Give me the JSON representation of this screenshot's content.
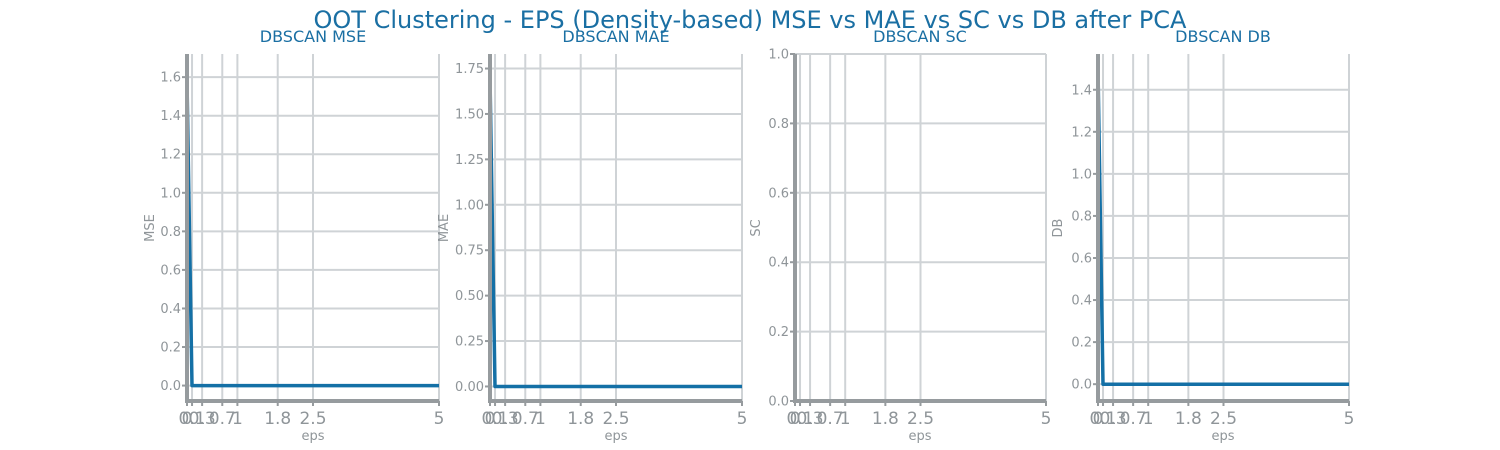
{
  "chart_data": {
    "suptitle": "OOT Clustering - EPS (Density-based) MSE vs MAE vs SC vs DB after PCA",
    "colors": {
      "line": "#1470a6",
      "title": "#1a6fa3",
      "axis": "#969b9e",
      "grid": "#cfd3d6",
      "text": "#8f9599"
    },
    "panels": [
      {
        "type": "line",
        "title": "DBSCAN MSE",
        "xlabel": "eps",
        "ylabel": "MSE",
        "x": [
          0,
          0.1,
          0.3,
          0.5,
          0.7,
          1,
          1.8,
          2.5,
          5
        ],
        "values": [
          1.58,
          0,
          0,
          0,
          0,
          0,
          0,
          0,
          0
        ],
        "xlim": [
          0,
          5
        ],
        "ylim": [
          -0.08,
          1.72
        ],
        "xticks": [
          0,
          0.1,
          0.3,
          0.7,
          1,
          1.8,
          2.5,
          5
        ],
        "xticklabels": [
          "0",
          "0.1",
          "0.3",
          "0.7",
          "1",
          "1.8",
          "2.5",
          "5"
        ],
        "yticks": [
          0,
          0.2,
          0.4,
          0.6,
          0.8,
          1.0,
          1.2,
          1.4,
          1.6
        ],
        "yticklabels": [
          "0.0",
          "0.2",
          "0.4",
          "0.6",
          "0.8",
          "1.0",
          "1.2",
          "1.4",
          "1.6"
        ]
      },
      {
        "type": "line",
        "title": "DBSCAN MAE",
        "xlabel": "eps",
        "ylabel": "MAE",
        "x": [
          0,
          0.1,
          0.3,
          0.5,
          0.7,
          1,
          1.8,
          2.5,
          5
        ],
        "values": [
          1.7,
          0,
          0,
          0,
          0,
          0,
          0,
          0,
          0
        ],
        "xlim": [
          0,
          5
        ],
        "ylim": [
          -0.08,
          1.83
        ],
        "xticks": [
          0,
          0.1,
          0.3,
          0.7,
          1,
          1.8,
          2.5,
          5
        ],
        "xticklabels": [
          "0",
          "0.1",
          "0.3",
          "0.7",
          "1",
          "1.8",
          "2.5",
          "5"
        ],
        "yticks": [
          0,
          0.25,
          0.5,
          0.75,
          1.0,
          1.25,
          1.5,
          1.75
        ],
        "yticklabels": [
          "0.00",
          "0.25",
          "0.50",
          "0.75",
          "1.00",
          "1.25",
          "1.50",
          "1.75"
        ]
      },
      {
        "type": "line",
        "title": "DBSCAN SC",
        "xlabel": "eps",
        "ylabel": "SC",
        "x": [
          0,
          0.1,
          0.3,
          0.5,
          0.7,
          1,
          1.8,
          2.5,
          5
        ],
        "values": [
          0,
          0,
          0,
          0,
          0,
          0,
          0,
          0,
          0
        ],
        "xlim": [
          0,
          5
        ],
        "ylim": [
          0,
          1.0
        ],
        "xticks": [
          0,
          0.1,
          0.3,
          0.7,
          1,
          1.8,
          2.5,
          5
        ],
        "xticklabels": [
          "0",
          "0.1",
          "0.3",
          "0.7",
          "1",
          "1.8",
          "2.5",
          "5"
        ],
        "yticks": [
          0,
          0.2,
          0.4,
          0.6,
          0.8,
          1.0
        ],
        "yticklabels": [
          "0.0",
          "0.2",
          "0.4",
          "0.6",
          "0.8",
          "1.0"
        ]
      },
      {
        "type": "line",
        "title": "DBSCAN DB",
        "xlabel": "eps",
        "ylabel": "DB",
        "x": [
          0,
          0.1,
          0.3,
          0.5,
          0.7,
          1,
          1.8,
          2.5,
          5
        ],
        "values": [
          1.5,
          0,
          0,
          0,
          0,
          0,
          0,
          0,
          0
        ],
        "xlim": [
          0,
          5
        ],
        "ylim": [
          -0.08,
          1.57
        ],
        "xticks": [
          0,
          0.1,
          0.3,
          0.7,
          1,
          1.8,
          2.5,
          5
        ],
        "xticklabels": [
          "0",
          "0.1",
          "0.3",
          "0.7",
          "1",
          "1.8",
          "2.5",
          "5"
        ],
        "yticks": [
          0,
          0.2,
          0.4,
          0.6,
          0.8,
          1.0,
          1.2,
          1.4
        ],
        "yticklabels": [
          "0.0",
          "0.2",
          "0.4",
          "0.6",
          "0.8",
          "1.0",
          "1.2",
          "1.4"
        ]
      }
    ]
  }
}
